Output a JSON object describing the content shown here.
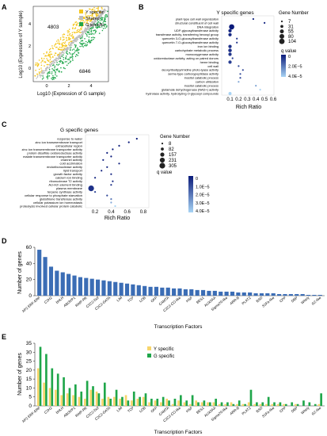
{
  "panels": {
    "A": {
      "letter": "A",
      "legend": [
        "Y specific",
        "Shared",
        "G specific"
      ],
      "legend_colors": [
        "#f5c518",
        "#bdbdbd",
        "#1fa64a"
      ],
      "count_y": "4803",
      "count_g": "6846",
      "xlabel": "Log10 (Expression of G sample)",
      "ylabel": "Log10 (Expression of Y sample)",
      "xticks": [
        "0",
        "2",
        "4"
      ],
      "yticks": [
        "0",
        "2",
        "4"
      ]
    },
    "B": {
      "letter": "B",
      "title": "Y specific genes",
      "xlabel": "Rich Ratio",
      "xticks": [
        "0.1",
        "0.2",
        "0.3",
        "0.4",
        "0.5",
        "0.6"
      ],
      "size_legend_title": "Gene Number",
      "size_legend": [
        "7",
        "31",
        "55",
        "80",
        "104"
      ],
      "color_legend_title": "q value",
      "color_legend": [
        "0",
        "2.0E−5",
        "4.0E−5"
      ],
      "terms": [
        "plant-type cell wall organization",
        "structural constituent of cell wall",
        "DNA integration",
        "UDP-glycosyltransferase activity",
        "transferase activity, transferring hexosyl group",
        "quercetin 3-O-glucosyltransferase activity",
        "quercetin 7-O-glucosyltransferase activity",
        "iron ion binding",
        "carbohydrate metabolic process",
        "monooxygenase activity",
        "oxidoreductase activity, acting on paired donors",
        "heme binding",
        "cell wall",
        "deoxyribodipyrimidine photo-lyase activity",
        "serine-type carboxypeptidase activity",
        "inositol catabolic process",
        "carbon utilization",
        "inositol catabolic process",
        "glutamate dehydrogenase (NAD+) activity",
        "hydrolase activity, hydrolyzing O-glycosyl compounds"
      ]
    },
    "C": {
      "letter": "C",
      "title": "G specific genes",
      "xlabel": "Rich Ratio",
      "xticks": [
        "0.2",
        "0.4",
        "0.6",
        "0.8"
      ],
      "size_legend_title": "Gene Number",
      "size_legend": [
        "8",
        "82",
        "157",
        "231",
        "305"
      ],
      "color_legend_title": "q value",
      "color_legend": [
        "0",
        "1.0E−5",
        "2.0E−5",
        "3.0E−5",
        "4.0E−5"
      ],
      "terms": [
        "response to water",
        "zinc ion transmembrane transport",
        "extracellular region",
        "zinc ion transmembrane transporter activity",
        "protein disulfide oxidoreductase activity",
        "malate transmembrane transporter activity",
        "channel activity",
        "cold acclimation",
        "endoribonuclease activity",
        "lipid transport",
        "growth factor activity",
        "calcium ion binding",
        "ribonuclease T2 activity",
        "AU-rich element binding",
        "plasma membrane",
        "terpene synthase activity",
        "cellular response to phosphate starvation",
        "glutathione transferase activity",
        "cellular potassium ion homeostasis",
        "proteolysis involved cellular protein catabolic"
      ]
    },
    "D": {
      "letter": "D",
      "ylabel": "Number of genes",
      "xlabel": "Transcription Factors",
      "yticks": [
        "0",
        "20",
        "40",
        "60"
      ]
    },
    "E": {
      "letter": "E",
      "ylabel": "Number of genes",
      "xlabel": "Transcription Factors",
      "yticks": [
        "0",
        "5",
        "10",
        "15",
        "20",
        "25",
        "30",
        "35"
      ],
      "legend": [
        "Y specific",
        "G specific"
      ],
      "legend_colors": [
        "#f7d56b",
        "#1fa64a"
      ]
    }
  },
  "chart_data": [
    {
      "type": "scatter",
      "panel": "A",
      "xlabel": "Log10 (Expression of G sample)",
      "ylabel": "Log10 (Expression of Y sample)",
      "series": [
        {
          "name": "Y specific",
          "count": 4803
        },
        {
          "name": "Shared"
        },
        {
          "name": "G specific",
          "count": 6846
        }
      ]
    },
    {
      "type": "bubble",
      "panel": "B",
      "xlabel": "Rich Ratio",
      "x": [
        0.37,
        0.5,
        0.12,
        0.1,
        0.1,
        0.18,
        0.18,
        0.1,
        0.1,
        0.1,
        0.13,
        0.1,
        0.2,
        0.25,
        0.22,
        0.22,
        0.2,
        0.4,
        0.45,
        0.1
      ],
      "size": [
        8,
        8,
        100,
        40,
        40,
        10,
        10,
        40,
        45,
        40,
        10,
        40,
        10,
        8,
        8,
        8,
        8,
        8,
        8,
        35
      ],
      "q": [
        2e-06,
        2e-06,
        0.0,
        3e-06,
        3e-06,
        5e-06,
        5e-06,
        5e-06,
        5e-06,
        6e-06,
        8e-06,
        8e-06,
        1e-05,
        1e-05,
        1e-05,
        1e-05,
        3e-05,
        3e-05,
        4e-05,
        4e-05
      ]
    },
    {
      "type": "bubble",
      "panel": "C",
      "xlabel": "Rich Ratio",
      "x": [
        0.72,
        0.62,
        0.5,
        0.42,
        0.35,
        0.4,
        0.3,
        0.5,
        0.35,
        0.28,
        0.4,
        0.2,
        0.42,
        0.4,
        0.15,
        0.2,
        0.35,
        0.4,
        0.4,
        0.45
      ],
      "size": [
        20,
        15,
        20,
        15,
        15,
        10,
        15,
        10,
        15,
        15,
        10,
        20,
        10,
        10,
        305,
        15,
        10,
        10,
        10,
        10
      ],
      "q": [
        0.0,
        0.0,
        0.0,
        0.0,
        0.0,
        0.0,
        0.0,
        1e-06,
        1e-06,
        1e-06,
        2e-06,
        3e-06,
        3e-06,
        5e-06,
        5e-06,
        1e-05,
        1e-05,
        2e-05,
        3e-05,
        4e-05
      ]
    },
    {
      "type": "bar",
      "panel": "D",
      "ylim": [
        0,
        60
      ],
      "categories": [
        "AP2 ERF-ERF",
        "MYB",
        "C2H2",
        "NAC",
        "bHLH",
        "WRKY",
        "ABI3VP1",
        "C3H",
        "RWP-RK",
        "FAR1",
        "C2C2-Dof",
        "GRAS",
        "C2C2-GATA",
        "MADS",
        "LIM",
        "Trihelix",
        "TCP",
        "ARF",
        "LOB",
        "B3",
        "OFP",
        "bZIP",
        "CAMTA",
        "SBP",
        "C2C2-CO-like",
        "TUB",
        "HSF",
        "GRF",
        "BES1",
        "MYB-related",
        "AUX/IAA",
        "E2F-DP",
        "Sigma70-like",
        "BBR-BPC",
        "ARR-B",
        "EIL",
        "PLATZ",
        "C2C2-YABBY",
        "BSD",
        "SRS",
        "S1Fa-like",
        "LFY",
        "CPP",
        "ZF-HD",
        "DBP",
        "GeBP",
        "Whirly",
        "NF-X1",
        "G2-like"
      ],
      "values": [
        57,
        48,
        36,
        31,
        29,
        27,
        25,
        23,
        22,
        21,
        20,
        19,
        18,
        17,
        16,
        15,
        14,
        13,
        12,
        11,
        11,
        10,
        10,
        9,
        9,
        8,
        8,
        7,
        7,
        6,
        6,
        5,
        5,
        5,
        4,
        4,
        4,
        3,
        3,
        3,
        3,
        2,
        2,
        2,
        2,
        2,
        1,
        1,
        1
      ]
    },
    {
      "type": "bar",
      "panel": "E",
      "ylim": [
        0,
        35
      ],
      "categories": [
        "AP2 ERF-ERF",
        "MYB",
        "C2H2",
        "NAC",
        "bHLH",
        "WRKY",
        "ABI3VP1",
        "C3H",
        "RWP-RK",
        "FAR1",
        "C2C2-Dof",
        "GRAS",
        "C2C2-GATA",
        "MADS",
        "LIM",
        "Trihelix",
        "TCP",
        "ARF",
        "LOB",
        "B3",
        "OFP",
        "bZIP",
        "CAMTA",
        "SBP",
        "C2C2-CO-like",
        "TUB",
        "HSF",
        "GRF",
        "BES1",
        "MYB-related",
        "AUX/IAA",
        "E2F-DP",
        "Sigma70-like",
        "BBR-BPC",
        "ARR-B",
        "EIL",
        "PLATZ",
        "C2C2-YABBY",
        "BSD",
        "SRS",
        "S1Fa-like",
        "LFY",
        "CPP",
        "ZF-HD",
        "DBP",
        "GeBP",
        "Whirly",
        "NF-X1",
        "G2-like"
      ],
      "series": [
        {
          "name": "Y specific",
          "values": [
            21,
            13,
            10,
            9,
            6,
            7,
            6,
            5,
            4,
            9,
            8,
            4,
            5,
            5,
            4,
            6,
            3,
            4,
            5,
            2,
            3,
            2,
            4,
            1,
            3,
            2,
            1,
            3,
            2,
            2,
            2,
            1,
            1,
            2,
            1,
            1,
            2,
            1,
            1,
            1,
            1,
            1,
            1,
            0,
            1,
            0,
            0,
            0,
            1
          ]
        },
        {
          "name": "G specific",
          "values": [
            33,
            29,
            21,
            18,
            16,
            10,
            12,
            8,
            14,
            11,
            7,
            13,
            4,
            9,
            5,
            3,
            8,
            5,
            7,
            4,
            4,
            5,
            3,
            4,
            6,
            3,
            6,
            2,
            3,
            2,
            4,
            2,
            2,
            1,
            3,
            1,
            9,
            2,
            2,
            5,
            2,
            2,
            1,
            2,
            1,
            3,
            2,
            1,
            7
          ]
        }
      ]
    }
  ]
}
